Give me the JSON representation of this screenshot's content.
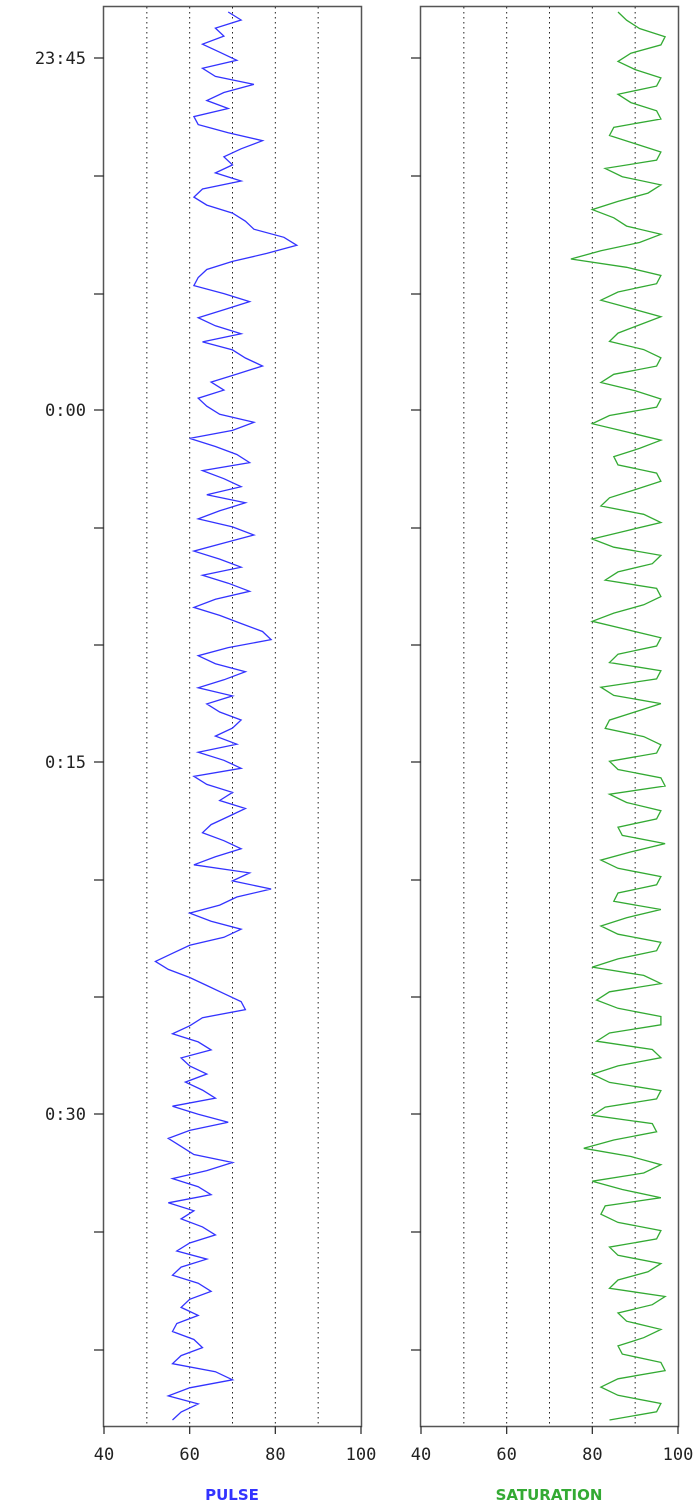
{
  "chart_data": [
    {
      "type": "line",
      "orientation": "vertical-time",
      "title": "PULSE",
      "title_color": "#3333ff",
      "line_color": "#3333ff",
      "xlim": [
        40,
        100
      ],
      "x_ticks": [
        40,
        60,
        80,
        100
      ],
      "x_tick_labels": [
        "40",
        "60",
        "80",
        "100"
      ],
      "gridlines": [
        50,
        60,
        70,
        80,
        90
      ],
      "grid": true,
      "time_labels": [
        "23:45",
        "0:00",
        "0:15",
        "0:30"
      ],
      "series": [
        {
          "values": [
            69,
            72,
            66,
            68,
            63,
            67,
            71,
            63,
            66,
            75,
            68,
            64,
            69,
            61,
            62,
            69,
            77,
            72,
            68,
            70,
            66,
            72,
            63,
            61,
            64,
            70,
            73,
            75,
            82,
            85,
            78,
            70,
            64,
            62,
            61,
            68,
            74,
            68,
            62,
            66,
            72,
            63,
            70,
            73,
            77,
            71,
            65,
            68,
            62,
            64,
            67,
            75,
            70,
            60,
            66,
            71,
            74,
            63,
            68,
            72,
            64,
            73,
            67,
            62,
            70,
            75,
            68,
            61,
            67,
            72,
            63,
            69,
            74,
            66,
            61,
            67,
            72,
            77,
            79,
            69,
            62,
            66,
            73,
            68,
            62,
            70,
            64,
            67,
            72,
            70,
            66,
            71,
            62,
            68,
            72,
            61,
            64,
            70,
            67,
            73,
            69,
            65,
            63,
            68,
            72,
            66,
            61,
            74,
            70,
            79,
            71,
            67,
            60,
            65,
            72,
            68,
            60,
            56,
            52,
            55,
            60,
            64,
            68,
            72,
            73,
            63,
            60,
            56,
            62,
            65,
            58,
            60,
            64,
            59,
            63,
            66,
            56,
            62,
            69,
            60,
            55,
            58,
            61,
            70,
            64,
            56,
            62,
            65,
            55,
            61,
            58,
            63,
            66,
            60,
            57,
            64,
            58,
            56,
            62,
            65,
            60,
            58,
            62,
            57,
            56,
            61,
            63,
            58,
            56,
            66,
            70,
            60,
            55,
            62,
            58,
            56
          ]
        }
      ]
    },
    {
      "type": "line",
      "orientation": "vertical-time",
      "title": "SATURATION",
      "title_color": "#33aa33",
      "line_color": "#33aa33",
      "xlim": [
        40,
        100
      ],
      "x_ticks": [
        40,
        60,
        80,
        100
      ],
      "x_tick_labels": [
        "40",
        "60",
        "80",
        "100"
      ],
      "gridlines": [
        50,
        60,
        70,
        80,
        90
      ],
      "grid": true,
      "time_labels": [
        "23:45",
        "0:00",
        "0:15",
        "0:30"
      ],
      "series": [
        {
          "values": [
            86,
            88,
            91,
            97,
            96,
            89,
            86,
            90,
            96,
            95,
            86,
            89,
            95,
            96,
            85,
            84,
            90,
            96,
            95,
            83,
            87,
            96,
            93,
            86,
            80,
            85,
            88,
            96,
            91,
            82,
            75,
            88,
            96,
            95,
            86,
            82,
            89,
            96,
            91,
            86,
            84,
            92,
            96,
            95,
            85,
            82,
            90,
            96,
            95,
            84,
            80,
            88,
            96,
            91,
            85,
            86,
            95,
            96,
            90,
            84,
            82,
            92,
            96,
            88,
            80,
            85,
            96,
            94,
            86,
            83,
            95,
            96,
            92,
            85,
            80,
            88,
            96,
            95,
            86,
            84,
            96,
            95,
            82,
            85,
            96,
            90,
            84,
            83,
            92,
            96,
            95,
            84,
            86,
            96,
            97,
            84,
            88,
            96,
            95,
            86,
            87,
            97,
            89,
            82,
            86,
            96,
            95,
            86,
            85,
            96,
            88,
            82,
            86,
            96,
            95,
            86,
            80,
            92,
            96,
            84,
            81,
            86,
            96,
            96,
            84,
            81,
            94,
            96,
            86,
            80,
            84,
            96,
            95,
            83,
            80,
            94,
            95,
            85,
            78,
            89,
            96,
            92,
            80,
            87,
            96,
            83,
            82,
            86,
            96,
            95,
            84,
            86,
            96,
            93,
            86,
            84,
            97,
            94,
            86,
            88,
            96,
            92,
            86,
            87,
            96,
            97,
            86,
            82,
            86,
            96,
            95,
            84
          ]
        }
      ]
    }
  ]
}
